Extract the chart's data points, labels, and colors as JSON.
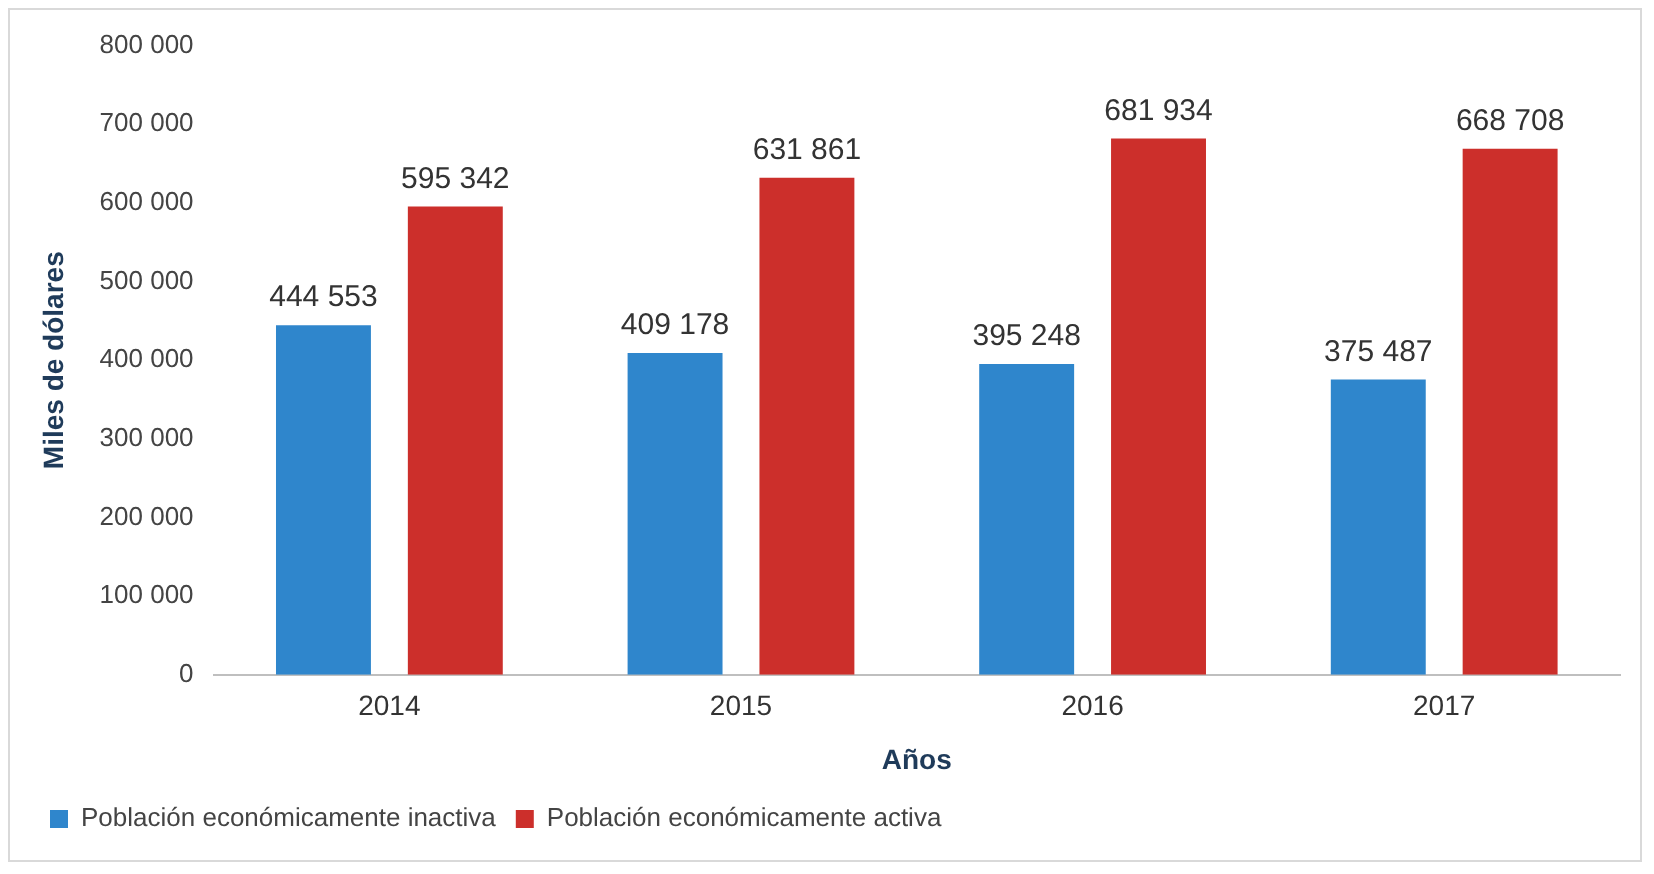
{
  "chart_data": {
    "type": "bar",
    "xlabel": "Años",
    "ylabel": "Miles de dólares",
    "categories": [
      "2014",
      "2015",
      "2016",
      "2017"
    ],
    "series": [
      {
        "name": "Población económicamente inactiva",
        "color": "#2f86cc",
        "values": [
          444553,
          409178,
          395248,
          375487
        ],
        "value_labels": [
          "444 553",
          "409 178",
          "395 248",
          "375 487"
        ]
      },
      {
        "name": "Población económicamente activa",
        "color": "#cc2f2b",
        "values": [
          595342,
          631861,
          681934,
          668708
        ],
        "value_labels": [
          "595 342",
          "631 861",
          "681 934",
          "668 708"
        ]
      }
    ],
    "ylim": [
      0,
      800000
    ],
    "yticks": [
      {
        "value": 0,
        "label": "0"
      },
      {
        "value": 100000,
        "label": "100 000"
      },
      {
        "value": 200000,
        "label": "200 000"
      },
      {
        "value": 300000,
        "label": "300 000"
      },
      {
        "value": 400000,
        "label": "400 000"
      },
      {
        "value": 500000,
        "label": "500 000"
      },
      {
        "value": 600000,
        "label": "600 000"
      },
      {
        "value": 700000,
        "label": "700 000"
      },
      {
        "value": 800000,
        "label": "800 000"
      }
    ],
    "grid": false,
    "legend": "bottom left"
  }
}
